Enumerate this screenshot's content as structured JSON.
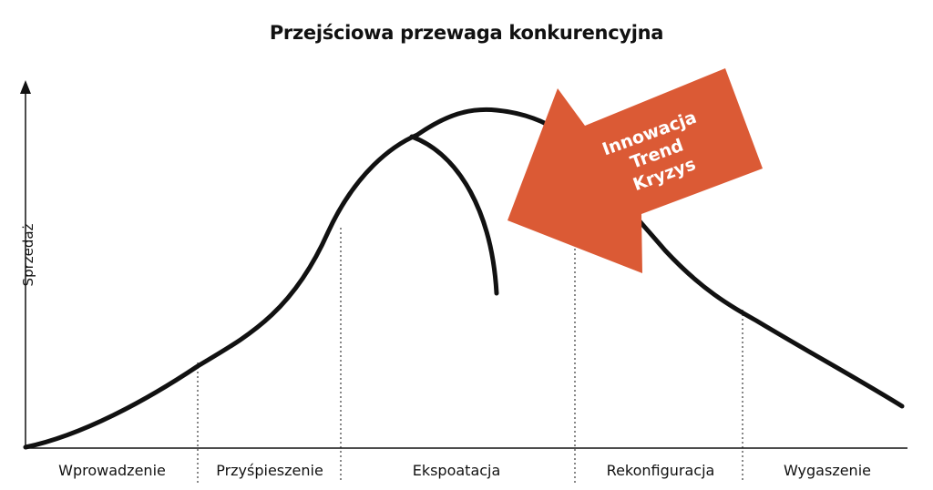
{
  "title": "Przejściowa przewaga konkurencyjna",
  "ylabel": "Sprzedaż",
  "stages": [
    "Wprowadzenie",
    "Przyśpieszenie",
    "Ekspoatacja",
    "Rekonfiguracja",
    "Wygaszenie"
  ],
  "arrow": {
    "lines": [
      "Innowacja",
      "Trend",
      "Kryzys"
    ],
    "color": "#DB5A35"
  },
  "colors": {
    "curve": "#111111",
    "text": "#111111"
  }
}
